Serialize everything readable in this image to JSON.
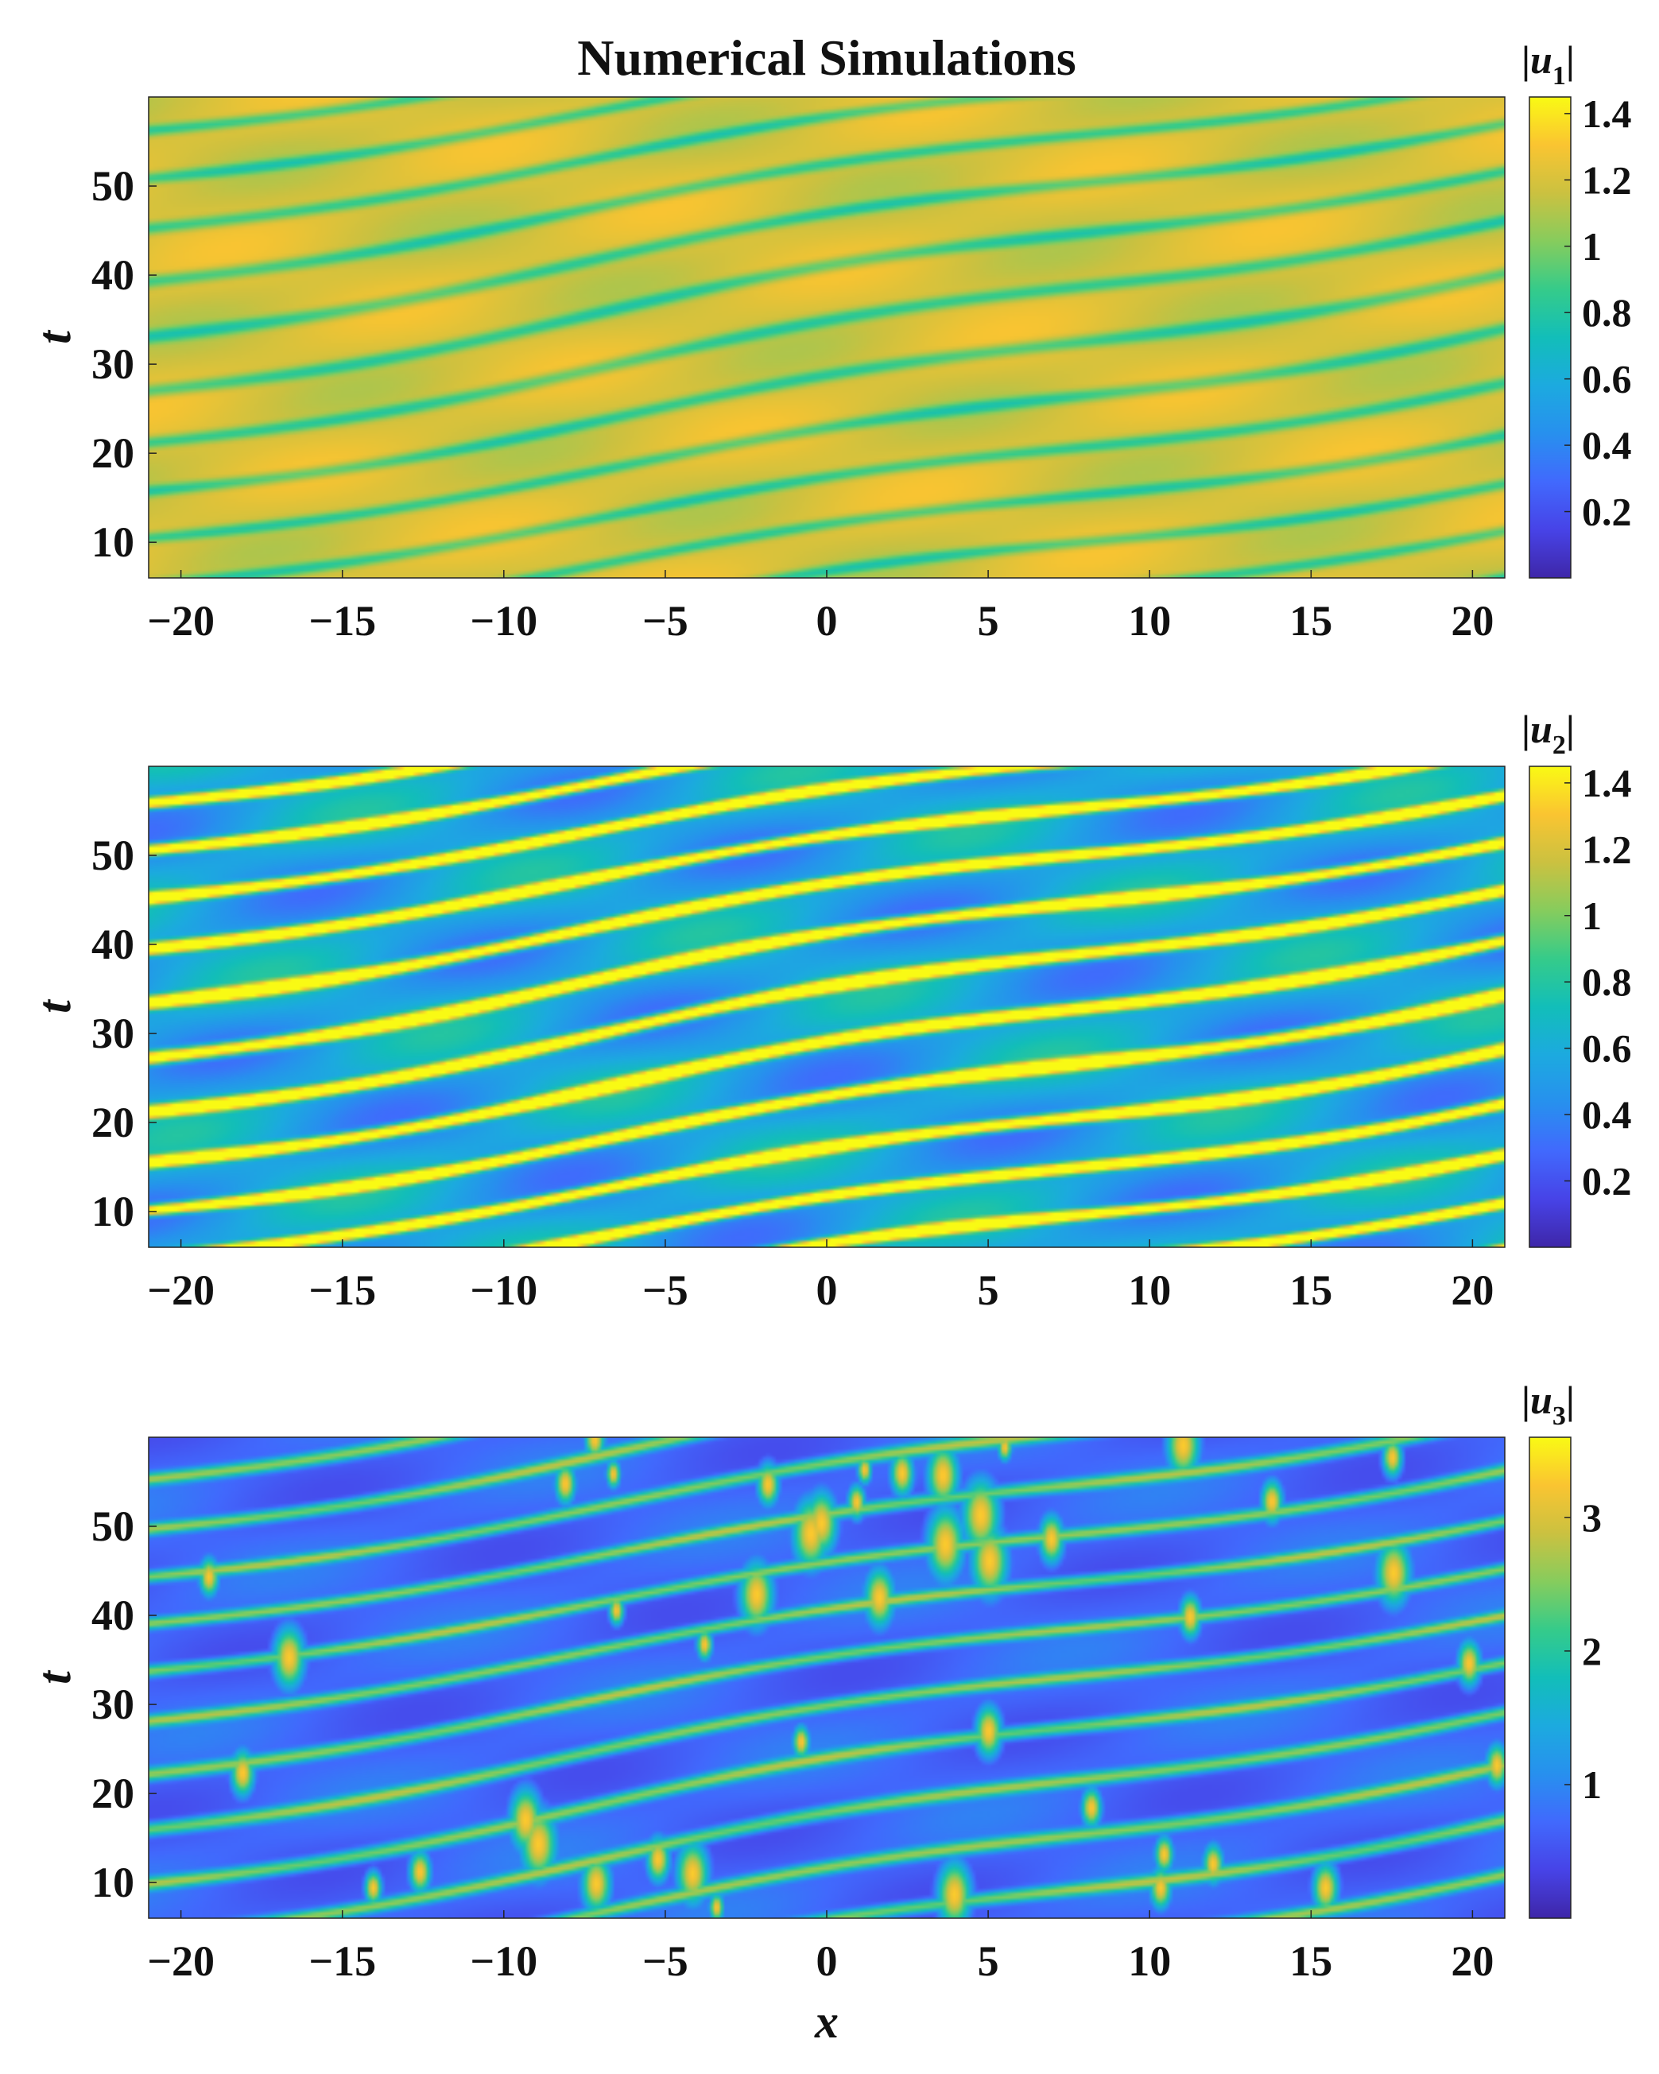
{
  "chart_data": [
    {
      "type": "heatmap",
      "title": "Numerical Simulations",
      "xlabel": "",
      "ylabel": "t",
      "colorbar_label": {
        "base": "u",
        "sub": "1"
      },
      "xticks": [
        -20,
        -15,
        -10,
        -5,
        0,
        5,
        10,
        15,
        20
      ],
      "yticks": [
        10,
        20,
        30,
        40,
        50
      ],
      "xlim": [
        -21,
        21
      ],
      "ylim": [
        6,
        60
      ],
      "colormap": "parula",
      "clim": [
        0,
        1.45
      ],
      "cbticks": [
        0.2,
        0.4,
        0.6,
        0.8,
        1,
        1.2,
        1.4
      ],
      "field": {
        "background": 1.2,
        "stripe": 0.35,
        "stripe_sign": -1,
        "noise": 0.1,
        "seed": 11
      }
    },
    {
      "type": "heatmap",
      "title": "",
      "xlabel": "",
      "ylabel": "t",
      "colorbar_label": {
        "base": "u",
        "sub": "2"
      },
      "xticks": [
        -20,
        -15,
        -10,
        -5,
        0,
        5,
        10,
        15,
        20
      ],
      "yticks": [
        10,
        20,
        30,
        40,
        50
      ],
      "xlim": [
        -21,
        21
      ],
      "ylim": [
        6,
        60
      ],
      "colormap": "parula",
      "clim": [
        0,
        1.45
      ],
      "cbticks": [
        0.2,
        0.4,
        0.6,
        0.8,
        1,
        1.2,
        1.4
      ],
      "field": {
        "background": 0.55,
        "stripe": 1.3,
        "stripe_sign": 1,
        "noise": 0.25,
        "seed": 23
      }
    },
    {
      "type": "heatmap",
      "title": "",
      "xlabel": "x",
      "ylabel": "t",
      "colorbar_label": {
        "base": "u",
        "sub": "3"
      },
      "xticks": [
        -20,
        -15,
        -10,
        -5,
        0,
        5,
        10,
        15,
        20
      ],
      "yticks": [
        10,
        20,
        30,
        40,
        50
      ],
      "xlim": [
        -21,
        21
      ],
      "ylim": [
        6,
        60
      ],
      "colormap": "parula",
      "clim": [
        0,
        3.6
      ],
      "cbticks": [
        1,
        2,
        3
      ],
      "field": {
        "background": 0.7,
        "stripe": 1.9,
        "stripe_sign": 1,
        "noise": 0.25,
        "seed": 37,
        "peaks": 3.3
      }
    }
  ]
}
